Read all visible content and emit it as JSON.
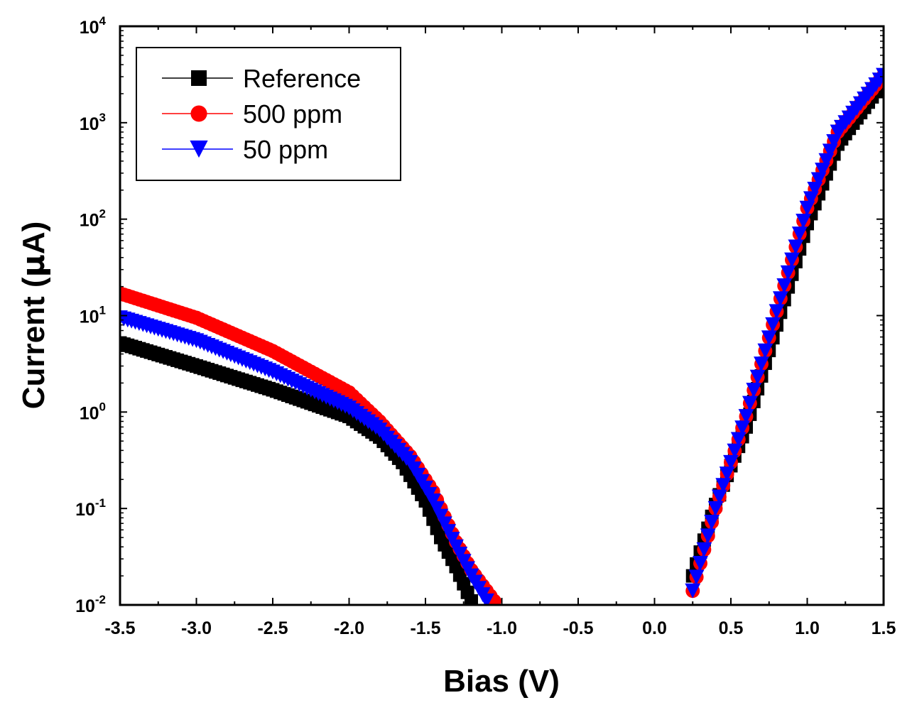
{
  "chart_data": {
    "type": "scatter",
    "title": "",
    "xlabel": "Bias (V)",
    "ylabel_prefix": "Current (",
    "ylabel_mu": "μ",
    "ylabel_suffix": "A)",
    "xlim": [
      -3.5,
      1.5
    ],
    "ylim": [
      0.01,
      10000
    ],
    "yscale": "log",
    "x_ticks": [
      -3.5,
      -3.0,
      -2.5,
      -2.0,
      -1.5,
      -1.0,
      -0.5,
      0.0,
      0.5,
      1.0,
      1.5
    ],
    "x_tick_labels": [
      "-3.5",
      "-3.0",
      "-2.5",
      "-2.0",
      "-1.5",
      "-1.0",
      "-0.5",
      "0.0",
      "0.5",
      "1.0",
      "1.5"
    ],
    "y_ticks": [
      {
        "value": 0.01,
        "base": "10",
        "exp": "-2"
      },
      {
        "value": 0.1,
        "base": "10",
        "exp": "-1"
      },
      {
        "value": 1,
        "base": "10",
        "exp": "0"
      },
      {
        "value": 10,
        "base": "10",
        "exp": "1"
      },
      {
        "value": 100,
        "base": "10",
        "exp": "2"
      },
      {
        "value": 1000,
        "base": "10",
        "exp": "3"
      },
      {
        "value": 10000,
        "base": "10",
        "exp": "4"
      }
    ],
    "grid": false,
    "legend_position": "top-left",
    "series": [
      {
        "name": "Reference",
        "color": "#000000",
        "marker": "square",
        "negative_branch": {
          "x_start": -3.5,
          "x_end": -1.2,
          "anchors": [
            [
              -3.5,
              5.2
            ],
            [
              -3.0,
              3.0
            ],
            [
              -2.5,
              1.7
            ],
            [
              -2.0,
              0.9
            ],
            [
              -1.8,
              0.55
            ],
            [
              -1.65,
              0.3
            ],
            [
              -1.5,
              0.12
            ],
            [
              -1.4,
              0.05
            ],
            [
              -1.3,
              0.025
            ],
            [
              -1.2,
              0.011
            ]
          ]
        },
        "positive_branch": {
          "x_start": 0.25,
          "x_end": 1.5,
          "anchors": [
            [
              0.25,
              0.02
            ],
            [
              0.4,
              0.11
            ],
            [
              0.6,
              0.7
            ],
            [
              0.8,
              8.0
            ],
            [
              1.0,
              90
            ],
            [
              1.2,
              600
            ],
            [
              1.5,
              2700
            ]
          ]
        }
      },
      {
        "name": "500 ppm",
        "color": "#ff0000",
        "marker": "circle",
        "negative_branch": {
          "x_start": -3.5,
          "x_end": -1.05,
          "anchors": [
            [
              -3.5,
              17
            ],
            [
              -3.0,
              9.5
            ],
            [
              -2.5,
              4.3
            ],
            [
              -2.0,
              1.6
            ],
            [
              -1.8,
              0.8
            ],
            [
              -1.6,
              0.35
            ],
            [
              -1.45,
              0.15
            ],
            [
              -1.3,
              0.045
            ],
            [
              -1.2,
              0.023
            ],
            [
              -1.05,
              0.011
            ]
          ]
        },
        "positive_branch": {
          "x_start": 0.25,
          "x_end": 1.5,
          "anchors": [
            [
              0.25,
              0.014
            ],
            [
              0.4,
              0.1
            ],
            [
              0.6,
              0.9
            ],
            [
              0.8,
              11
            ],
            [
              1.0,
              130
            ],
            [
              1.2,
              800
            ],
            [
              1.5,
              3100
            ]
          ]
        }
      },
      {
        "name": "50 ppm",
        "color": "#0000ff",
        "marker": "triangle-down",
        "negative_branch": {
          "x_start": -3.5,
          "x_end": -1.1,
          "anchors": [
            [
              -3.5,
              9.5
            ],
            [
              -3.0,
              5.5
            ],
            [
              -2.5,
              2.6
            ],
            [
              -2.0,
              1.1
            ],
            [
              -1.8,
              0.65
            ],
            [
              -1.6,
              0.3
            ],
            [
              -1.45,
              0.12
            ],
            [
              -1.3,
              0.04
            ],
            [
              -1.2,
              0.02
            ],
            [
              -1.1,
              0.011
            ]
          ]
        },
        "positive_branch": {
          "x_start": 0.25,
          "x_end": 1.5,
          "anchors": [
            [
              0.25,
              0.014
            ],
            [
              0.4,
              0.1
            ],
            [
              0.6,
              0.9
            ],
            [
              0.8,
              11
            ],
            [
              1.0,
              130
            ],
            [
              1.2,
              800
            ],
            [
              1.5,
              3100
            ]
          ]
        }
      }
    ]
  }
}
